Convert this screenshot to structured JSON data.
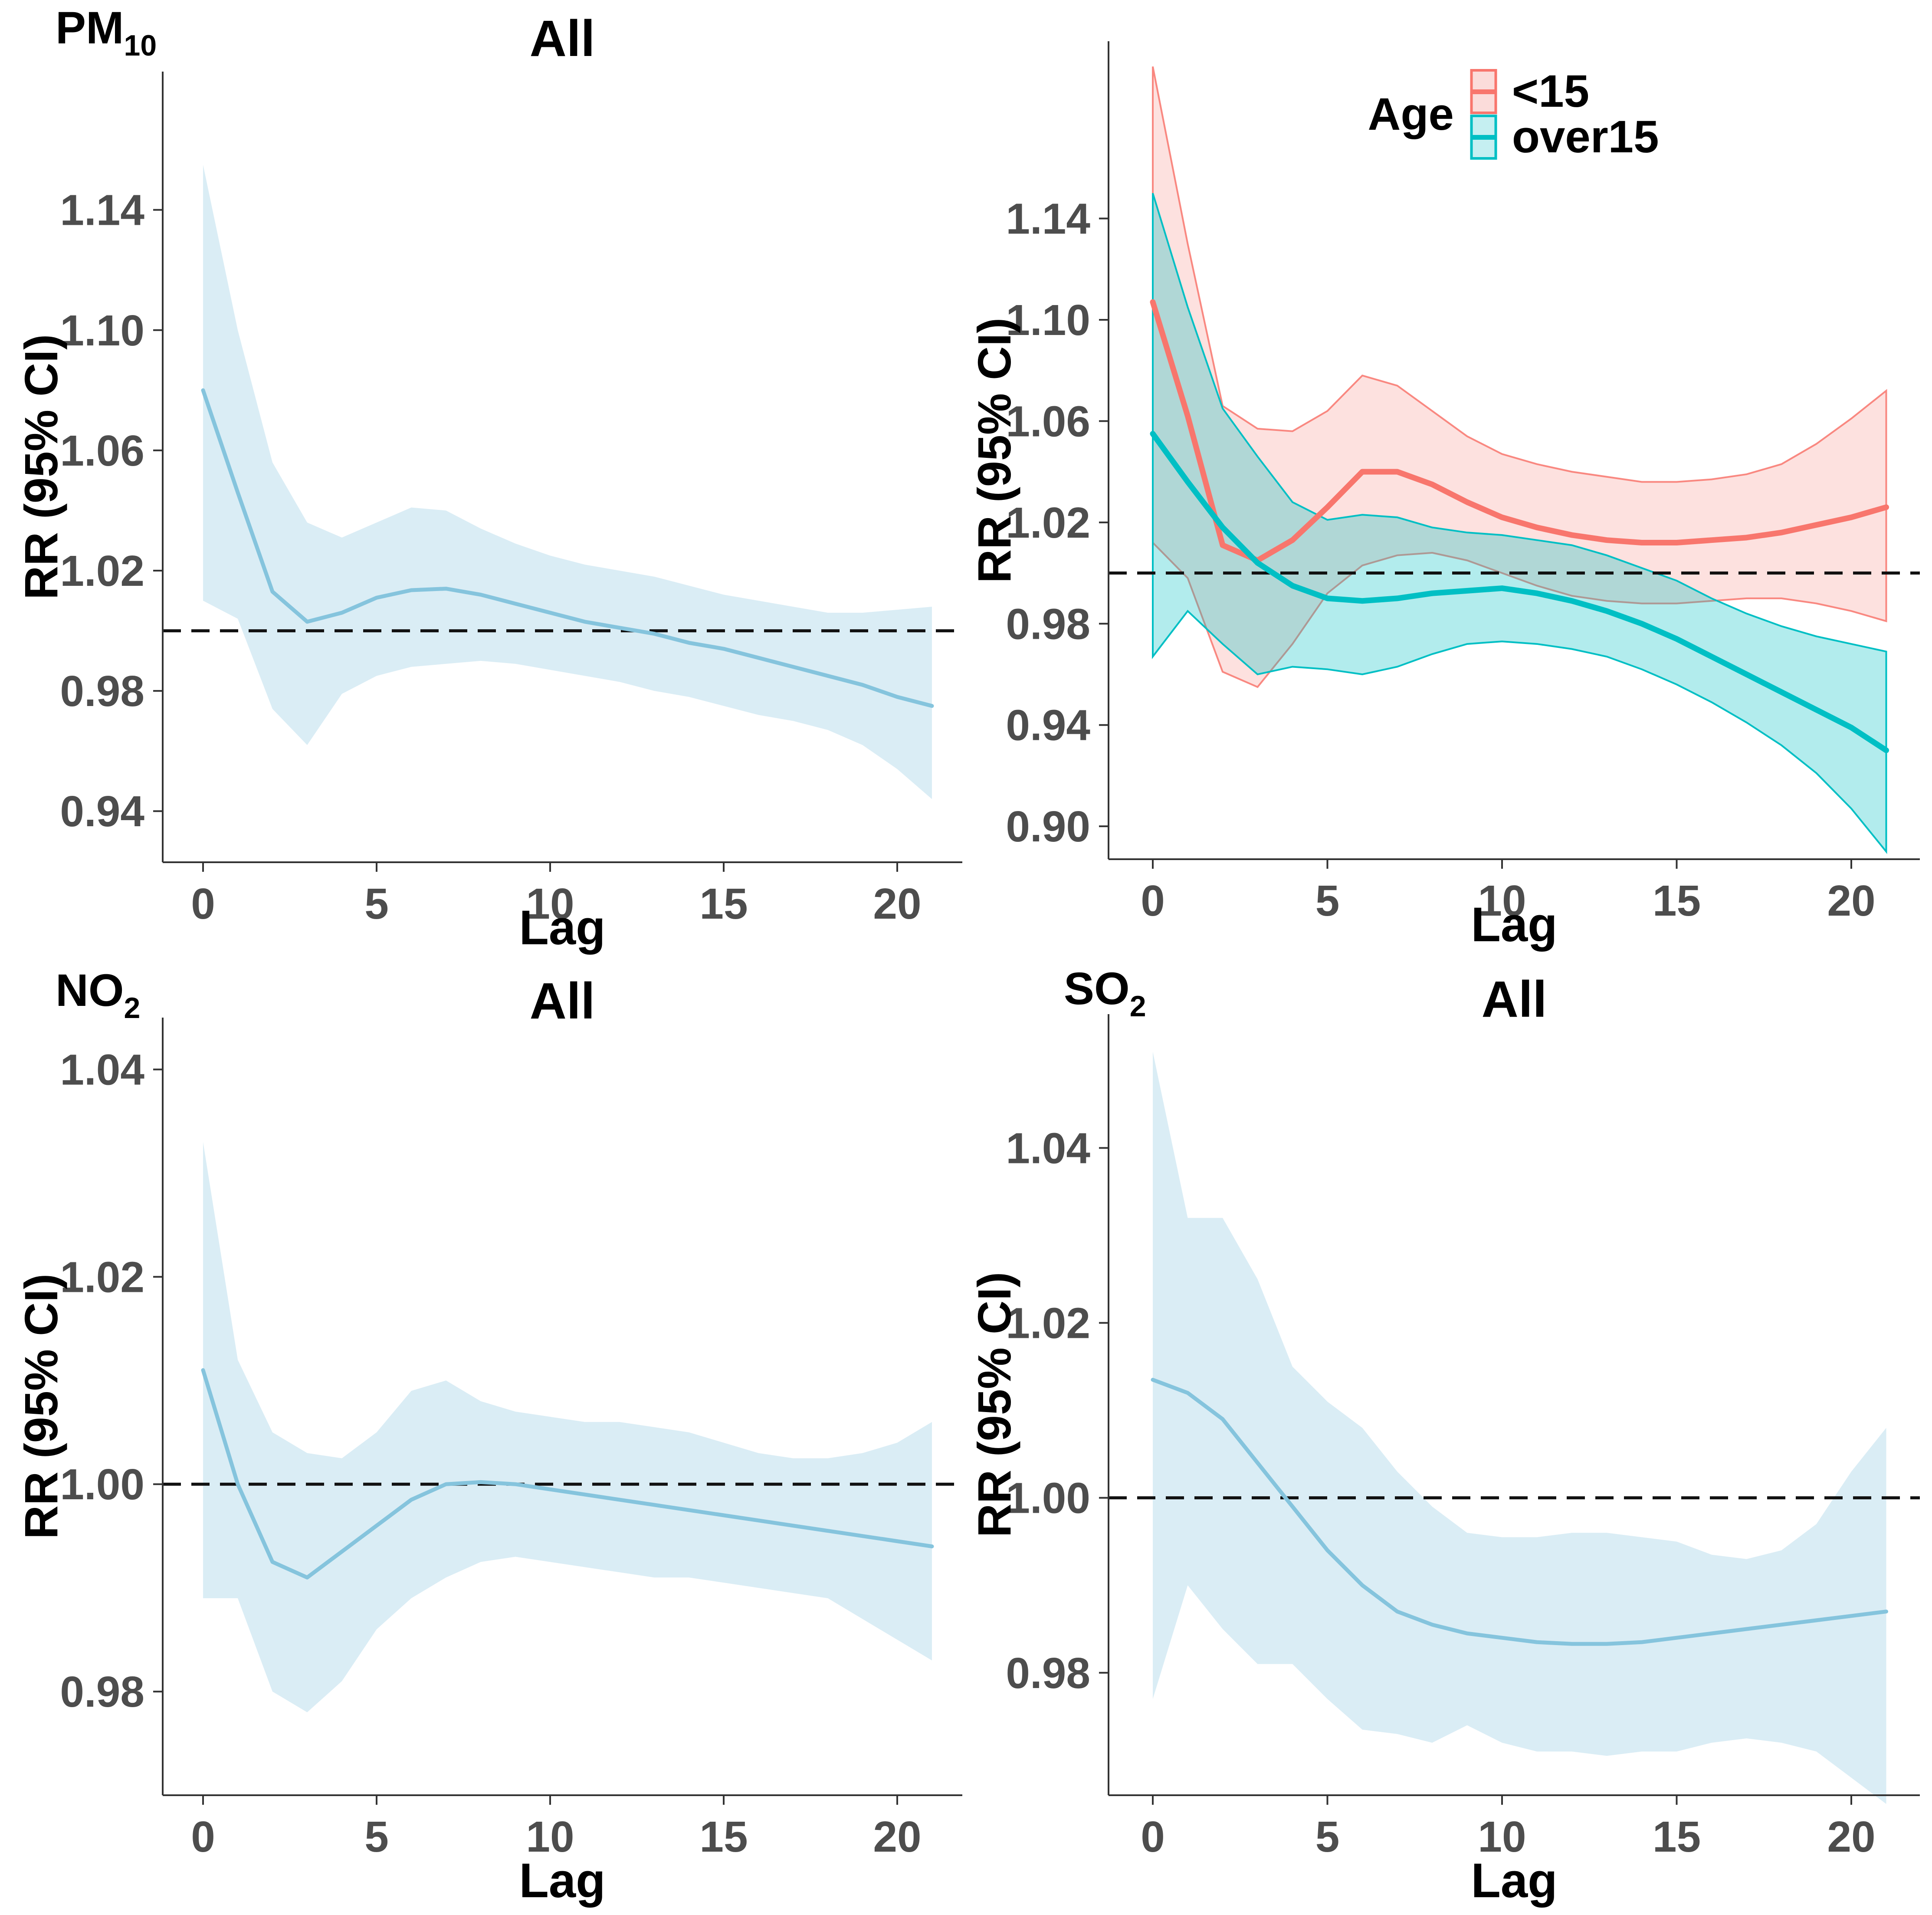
{
  "figure": {
    "background": "#ffffff",
    "colors": {
      "axis": "#333333",
      "tick_label": "#4d4d4d",
      "ref_line": "#111111",
      "all_line": "#85C4DD",
      "all_fill": "#DAEDF5",
      "under15_line": "#F8766D",
      "under15_fill": "rgba(248,118,109,0.22)",
      "over15_line": "#00BFC4",
      "over15_fill": "rgba(0,191,196,0.30)"
    },
    "legend": {
      "title": "Age",
      "position": "top-inside-right-panel",
      "items": [
        {
          "label": "<15",
          "line_color": "#F8766D",
          "fill": "#FBDCDA"
        },
        {
          "label": "over15",
          "line_color": "#00BFC4",
          "fill": "#C5EFF1"
        }
      ]
    }
  },
  "chart_data": [
    {
      "type": "line",
      "tag_main": "PM",
      "tag_sub": "10",
      "title": "All",
      "xlabel": "Lag",
      "ylabel": "RR (95% CI)",
      "legend_position": "none",
      "grid": false,
      "ref_line": 1.0,
      "x": [
        0,
        1,
        2,
        3,
        4,
        5,
        6,
        7,
        8,
        9,
        10,
        11,
        12,
        13,
        14,
        15,
        16,
        17,
        18,
        19,
        20,
        21
      ],
      "xticks": [
        0,
        5,
        10,
        15,
        20
      ],
      "yticks": [
        0.94,
        0.98,
        1.02,
        1.06,
        1.1,
        1.14
      ],
      "ylim": [
        0.923,
        1.186
      ],
      "series": [
        {
          "name": "All",
          "line_color": "#85C4DD",
          "fill": "#DAEDF5",
          "ribbon_stroke": null,
          "values": [
            1.08,
            1.046,
            1.013,
            1.003,
            1.006,
            1.011,
            1.0135,
            1.014,
            1.012,
            1.009,
            1.006,
            1.003,
            1.001,
            0.999,
            0.996,
            0.994,
            0.991,
            0.988,
            0.985,
            0.982,
            0.978,
            0.975
          ],
          "lower": [
            1.01,
            1.004,
            0.974,
            0.962,
            0.979,
            0.985,
            0.988,
            0.989,
            0.99,
            0.989,
            0.987,
            0.985,
            0.983,
            0.98,
            0.978,
            0.975,
            0.972,
            0.97,
            0.967,
            0.962,
            0.954,
            0.944
          ],
          "upper": [
            1.155,
            1.1,
            1.056,
            1.036,
            1.031,
            1.036,
            1.041,
            1.04,
            1.034,
            1.029,
            1.025,
            1.022,
            1.02,
            1.018,
            1.015,
            1.012,
            1.01,
            1.008,
            1.006,
            1.006,
            1.007,
            1.008
          ]
        }
      ]
    },
    {
      "type": "line",
      "tag_main": "",
      "tag_sub": "",
      "title": "",
      "xlabel": "Lag",
      "ylabel": "RR (95% CI)",
      "legend_position": "top-inside",
      "grid": false,
      "ref_line": 1.0,
      "x": [
        0,
        1,
        2,
        3,
        4,
        5,
        6,
        7,
        8,
        9,
        10,
        11,
        12,
        13,
        14,
        15,
        16,
        17,
        18,
        19,
        20,
        21
      ],
      "xticks": [
        0,
        5,
        10,
        15,
        20
      ],
      "yticks": [
        0.9,
        0.94,
        0.98,
        1.02,
        1.06,
        1.1,
        1.14
      ],
      "ylim": [
        0.887,
        1.21
      ],
      "series": [
        {
          "name": "<15",
          "line_color": "#F8766D",
          "fill": "rgba(248,118,109,0.22)",
          "ribbon_stroke": "rgba(248,118,109,0.85)",
          "values": [
            1.107,
            1.062,
            1.011,
            1.005,
            1.013,
            1.026,
            1.04,
            1.04,
            1.035,
            1.028,
            1.022,
            1.018,
            1.015,
            1.013,
            1.012,
            1.012,
            1.013,
            1.014,
            1.016,
            1.019,
            1.022,
            1.026
          ],
          "lower": [
            1.012,
            0.998,
            0.961,
            0.955,
            0.972,
            0.992,
            1.003,
            1.007,
            1.008,
            1.005,
            1.0,
            0.995,
            0.991,
            0.989,
            0.988,
            0.988,
            0.989,
            0.99,
            0.99,
            0.988,
            0.985,
            0.981
          ],
          "upper": [
            1.2,
            1.13,
            1.066,
            1.057,
            1.056,
            1.064,
            1.078,
            1.074,
            1.064,
            1.054,
            1.047,
            1.043,
            1.04,
            1.038,
            1.036,
            1.036,
            1.037,
            1.039,
            1.043,
            1.051,
            1.061,
            1.072
          ]
        },
        {
          "name": "over15",
          "line_color": "#00BFC4",
          "fill": "rgba(0,191,196,0.30)",
          "ribbon_stroke": "#00BFC4",
          "values": [
            1.055,
            1.036,
            1.018,
            1.004,
            0.995,
            0.99,
            0.989,
            0.99,
            0.992,
            0.993,
            0.994,
            0.992,
            0.989,
            0.985,
            0.98,
            0.974,
            0.967,
            0.96,
            0.953,
            0.946,
            0.939,
            0.93
          ],
          "lower": [
            0.967,
            0.985,
            0.972,
            0.96,
            0.963,
            0.962,
            0.96,
            0.963,
            0.968,
            0.972,
            0.973,
            0.972,
            0.97,
            0.967,
            0.962,
            0.956,
            0.949,
            0.941,
            0.932,
            0.921,
            0.907,
            0.89
          ],
          "upper": [
            1.15,
            1.105,
            1.065,
            1.046,
            1.028,
            1.021,
            1.023,
            1.022,
            1.018,
            1.016,
            1.015,
            1.013,
            1.011,
            1.007,
            1.002,
            0.997,
            0.99,
            0.984,
            0.979,
            0.975,
            0.972,
            0.969
          ]
        }
      ]
    },
    {
      "type": "line",
      "tag_main": "NO",
      "tag_sub": "2",
      "title": "All",
      "xlabel": "Lag",
      "ylabel": "RR (95% CI)",
      "legend_position": "none",
      "grid": false,
      "ref_line": 1.0,
      "x": [
        0,
        1,
        2,
        3,
        4,
        5,
        6,
        7,
        8,
        9,
        10,
        11,
        12,
        13,
        14,
        15,
        16,
        17,
        18,
        19,
        20,
        21
      ],
      "xticks": [
        0,
        5,
        10,
        15,
        20
      ],
      "yticks": [
        0.98,
        1.0,
        1.02,
        1.04
      ],
      "ylim": [
        0.97,
        1.045
      ],
      "series": [
        {
          "name": "All",
          "line_color": "#85C4DD",
          "fill": "#DAEDF5",
          "ribbon_stroke": null,
          "values": [
            1.011,
            1.0,
            0.9925,
            0.991,
            0.9935,
            0.996,
            0.9985,
            1.0,
            1.0002,
            1.0,
            0.9995,
            0.999,
            0.9985,
            0.998,
            0.9975,
            0.997,
            0.9965,
            0.996,
            0.9955,
            0.995,
            0.9945,
            0.994
          ],
          "lower": [
            0.989,
            0.989,
            0.98,
            0.978,
            0.981,
            0.986,
            0.989,
            0.991,
            0.9925,
            0.993,
            0.9925,
            0.992,
            0.9915,
            0.991,
            0.991,
            0.9905,
            0.99,
            0.9895,
            0.989,
            0.987,
            0.985,
            0.983
          ],
          "upper": [
            1.033,
            1.012,
            1.005,
            1.003,
            1.0025,
            1.005,
            1.009,
            1.01,
            1.008,
            1.007,
            1.0065,
            1.006,
            1.006,
            1.0055,
            1.005,
            1.004,
            1.003,
            1.0025,
            1.0025,
            1.003,
            1.004,
            1.006
          ]
        }
      ]
    },
    {
      "type": "line",
      "tag_main": "SO",
      "tag_sub": "2",
      "title": "All",
      "xlabel": "Lag",
      "ylabel": "RR (95% CI)",
      "legend_position": "none",
      "grid": false,
      "ref_line": 1.0,
      "x": [
        0,
        1,
        2,
        3,
        4,
        5,
        6,
        7,
        8,
        9,
        10,
        11,
        12,
        13,
        14,
        15,
        16,
        17,
        18,
        19,
        20,
        21
      ],
      "xticks": [
        0,
        5,
        10,
        15,
        20
      ],
      "yticks": [
        0.98,
        1.0,
        1.02,
        1.04
      ],
      "ylim": [
        0.966,
        1.0553
      ],
      "series": [
        {
          "name": "All",
          "line_color": "#85C4DD",
          "fill": "#DAEDF5",
          "ribbon_stroke": null,
          "values": [
            1.0135,
            1.012,
            1.009,
            1.004,
            0.999,
            0.994,
            0.99,
            0.987,
            0.9855,
            0.9845,
            0.984,
            0.9835,
            0.9833,
            0.9833,
            0.9835,
            0.984,
            0.9845,
            0.985,
            0.9855,
            0.986,
            0.9865,
            0.987
          ],
          "lower": [
            0.977,
            0.99,
            0.985,
            0.981,
            0.981,
            0.977,
            0.9735,
            0.973,
            0.972,
            0.974,
            0.972,
            0.971,
            0.971,
            0.9705,
            0.971,
            0.971,
            0.972,
            0.9725,
            0.972,
            0.971,
            0.968,
            0.965
          ],
          "upper": [
            1.051,
            1.032,
            1.032,
            1.025,
            1.015,
            1.011,
            1.008,
            1.003,
            0.999,
            0.996,
            0.9955,
            0.9955,
            0.996,
            0.996,
            0.9955,
            0.995,
            0.9935,
            0.993,
            0.994,
            0.997,
            1.003,
            1.008
          ]
        }
      ]
    }
  ]
}
